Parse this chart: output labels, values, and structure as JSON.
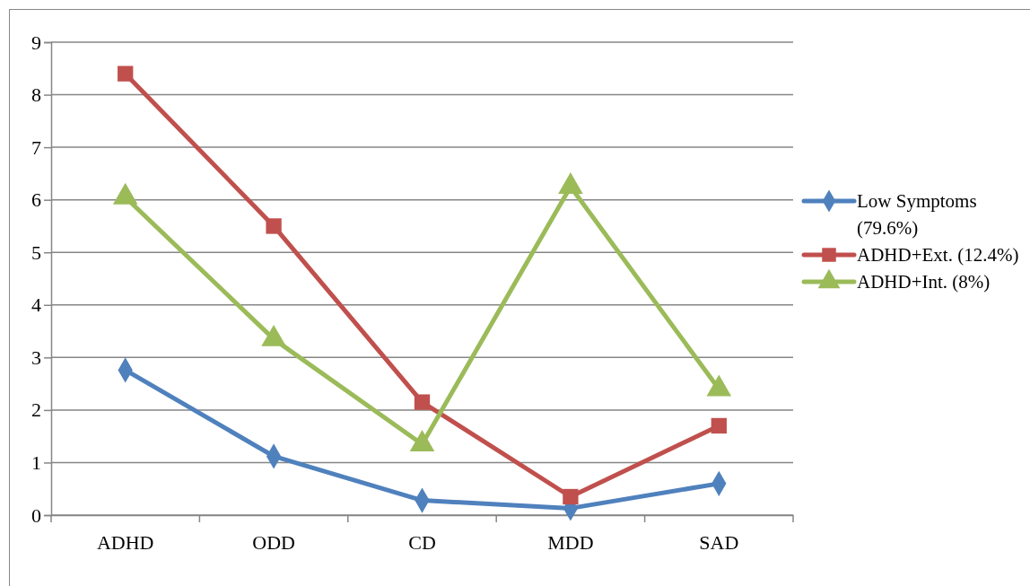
{
  "chart_data": {
    "type": "line",
    "categories": [
      "ADHD",
      "ODD",
      "CD",
      "MDD",
      "SAD"
    ],
    "series": [
      {
        "name": "Low Symptoms (79.6%)",
        "color": "#4f81bd",
        "marker": "diamond",
        "values": [
          2.76,
          1.12,
          0.28,
          0.13,
          0.6
        ]
      },
      {
        "name": "ADHD+Ext. (12.4%)",
        "color": "#c0504d",
        "marker": "square",
        "values": [
          8.4,
          5.5,
          2.15,
          0.35,
          1.7
        ]
      },
      {
        "name": "ADHD+Int. (8%)",
        "color": "#9bbb59",
        "marker": "triangle",
        "values": [
          6.05,
          3.35,
          1.35,
          6.25,
          2.4
        ]
      }
    ],
    "ylim": [
      0,
      9
    ],
    "yticks": [
      0,
      1,
      2,
      3,
      4,
      5,
      6,
      7,
      8,
      9
    ],
    "grid": "y",
    "legend": "right",
    "line_style": "solid"
  }
}
